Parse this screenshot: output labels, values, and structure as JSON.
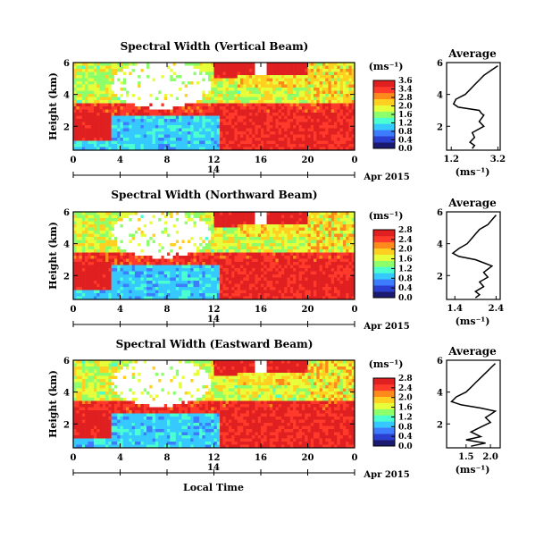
{
  "figure": {
    "xlabel": "Local Time",
    "date_label": "Apr 2015",
    "day_label": "14",
    "unit_label": "(ms⁻¹)",
    "avg_title": "Average",
    "avg_xlabel": "(ms⁻¹)",
    "ylabel": "Height (km)"
  },
  "colors": {
    "scale": [
      "#1a1a70",
      "#2a3fd0",
      "#3d7bff",
      "#35c9ff",
      "#4affd0",
      "#8cff6a",
      "#e6ff3a",
      "#ffd020",
      "#ff8a1c",
      "#ff3a2a",
      "#e02020"
    ]
  },
  "chart_data": [
    {
      "type": "heatmap",
      "title": "Spectral Width (Vertical Beam)",
      "x_range": [
        0,
        24
      ],
      "x_ticks": [
        "0",
        "4",
        "8",
        "12",
        "16",
        "20",
        "0"
      ],
      "y_range": [
        0.5,
        6
      ],
      "y_ticks": [
        "6",
        "4",
        "2"
      ],
      "colorbar_ticks": [
        "3.6",
        "3.4",
        "2.8",
        "2.0",
        "1.6",
        "1.2",
        "0.8",
        "0.4",
        "0.0"
      ],
      "colorbar_range": [
        0,
        3.6
      ]
    },
    {
      "type": "heatmap",
      "title": "Spectral Width (Northward Beam)",
      "x_range": [
        0,
        24
      ],
      "x_ticks": [
        "0",
        "4",
        "8",
        "12",
        "16",
        "20",
        "0"
      ],
      "y_range": [
        0.5,
        6
      ],
      "y_ticks": [
        "6",
        "4",
        "2"
      ],
      "colorbar_ticks": [
        "2.8",
        "2.4",
        "2.0",
        "1.6",
        "1.2",
        "0.8",
        "0.4",
        "0.0"
      ],
      "colorbar_range": [
        0,
        2.8
      ]
    },
    {
      "type": "heatmap",
      "title": "Spectral Width (Eastward Beam)",
      "x_range": [
        0,
        24
      ],
      "x_ticks": [
        "0",
        "4",
        "8",
        "12",
        "16",
        "20",
        "0"
      ],
      "y_range": [
        0.5,
        6
      ],
      "y_ticks": [
        "6",
        "4",
        "2"
      ],
      "colorbar_ticks": [
        "2.8",
        "2.4",
        "2.0",
        "1.6",
        "1.2",
        "0.8",
        "0.4",
        "0.0"
      ],
      "colorbar_range": [
        0,
        2.8
      ]
    },
    {
      "type": "line",
      "title": "Average",
      "xlabel": "(ms⁻¹)",
      "x_ticks": [
        "1.2",
        "3.2"
      ],
      "xlim": [
        1.0,
        3.3
      ],
      "y_ticks": [
        "6",
        "4",
        "2"
      ],
      "ylim": [
        0.5,
        6
      ],
      "x": [
        2.1,
        2.2,
        2.0,
        2.2,
        2.1,
        2.6,
        2.4,
        2.5,
        2.6,
        2.5,
        2.4,
        1.5,
        1.3,
        1.4,
        1.8,
        2.0,
        2.2,
        2.4,
        2.6,
        2.9,
        3.2
      ],
      "y": [
        0.6,
        0.8,
        1.0,
        1.3,
        1.6,
        2.0,
        2.3,
        2.5,
        2.7,
        2.8,
        3.0,
        3.2,
        3.4,
        3.7,
        4.0,
        4.3,
        4.6,
        4.9,
        5.2,
        5.5,
        5.8
      ]
    },
    {
      "type": "line",
      "title": "Average",
      "xlabel": "(ms⁻¹)",
      "x_ticks": [
        "1.4",
        "2.4"
      ],
      "xlim": [
        1.2,
        2.5
      ],
      "y_ticks": [
        "6",
        "4",
        "2"
      ],
      "ylim": [
        0.5,
        6
      ],
      "x": [
        1.9,
        2.0,
        1.9,
        2.1,
        2.0,
        2.2,
        2.1,
        2.2,
        2.3,
        2.1,
        1.9,
        1.5,
        1.35,
        1.5,
        1.7,
        1.8,
        1.9,
        2.0,
        2.2,
        2.3,
        2.4
      ],
      "y": [
        0.6,
        0.8,
        1.0,
        1.3,
        1.6,
        1.9,
        2.2,
        2.4,
        2.6,
        2.8,
        3.0,
        3.2,
        3.4,
        3.7,
        4.0,
        4.3,
        4.6,
        4.9,
        5.2,
        5.5,
        5.8
      ]
    },
    {
      "type": "line",
      "title": "Average",
      "xlabel": "(ms⁻¹)",
      "x_ticks": [
        "1.5",
        "2.0"
      ],
      "xlim": [
        1.1,
        2.2
      ],
      "y_ticks": [
        "6",
        "4",
        "2"
      ],
      "ylim": [
        0.5,
        6
      ],
      "x": [
        1.6,
        1.9,
        1.5,
        1.8,
        1.6,
        1.8,
        2.0,
        1.9,
        2.0,
        2.1,
        1.8,
        1.4,
        1.2,
        1.3,
        1.5,
        1.6,
        1.7,
        1.8,
        1.9,
        2.0,
        2.1
      ],
      "y": [
        0.6,
        0.8,
        1.0,
        1.2,
        1.5,
        1.8,
        2.1,
        2.4,
        2.6,
        2.8,
        3.0,
        3.2,
        3.4,
        3.7,
        4.0,
        4.3,
        4.6,
        4.9,
        5.2,
        5.5,
        5.8
      ]
    }
  ]
}
